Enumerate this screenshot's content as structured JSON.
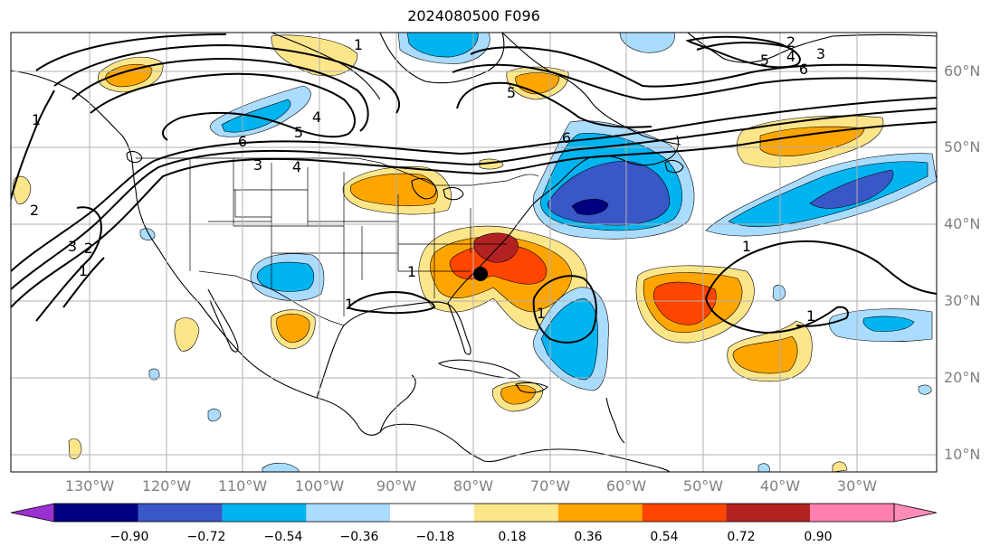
{
  "title": "2024080500 F096",
  "map": {
    "lat_labels": [
      "60°N",
      "50°N",
      "40°N",
      "30°N",
      "20°N",
      "10°N"
    ],
    "lon_labels": [
      "130°W",
      "120°W",
      "110°W",
      "100°W",
      "90°W",
      "80°W",
      "70°W",
      "60°W",
      "50°W",
      "40°W",
      "30°W"
    ],
    "contour_labels": [
      "1",
      "1",
      "1",
      "1",
      "1",
      "1",
      "1",
      "1",
      "2",
      "2",
      "2",
      "3",
      "3",
      "3",
      "4",
      "4",
      "4",
      "5",
      "5",
      "5",
      "6",
      "6",
      "6"
    ],
    "marker": "storm-center-dot"
  },
  "colorbar": {
    "ticks": [
      "−0.90",
      "−0.72",
      "−0.54",
      "−0.36",
      "−0.18",
      "0.18",
      "0.36",
      "0.54",
      "0.72",
      "0.90"
    ],
    "colors": [
      "#9b30d0",
      "#000080",
      "#3a57c8",
      "#00b4f0",
      "#aadcff",
      "#ffffff",
      "#fde68a",
      "#ffa500",
      "#ff4500",
      "#b22222",
      "#ff7fb0",
      "#ff8cb8"
    ]
  }
}
